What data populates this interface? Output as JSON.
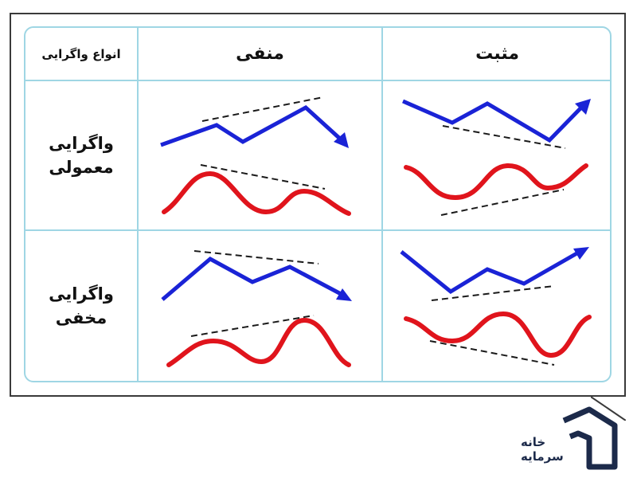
{
  "table": {
    "header_type": "انواع واگرایی",
    "header_negative": "منفی",
    "header_positive": "مثبت",
    "row_regular_line1": "واگرایی",
    "row_regular_line2": "معمولی",
    "row_hidden_line1": "واگرایی",
    "row_hidden_line2": "مخفی"
  },
  "logo": {
    "line1": "خانه",
    "line2": "سرمایه"
  },
  "colors": {
    "price_line": "#1a23d6",
    "oscillator": "#e0141c",
    "trendline": "#1a1a1a",
    "grid_border": "#9fd6e4",
    "frame": "#3a3a3a",
    "logo": "#1c2a4a"
  }
}
